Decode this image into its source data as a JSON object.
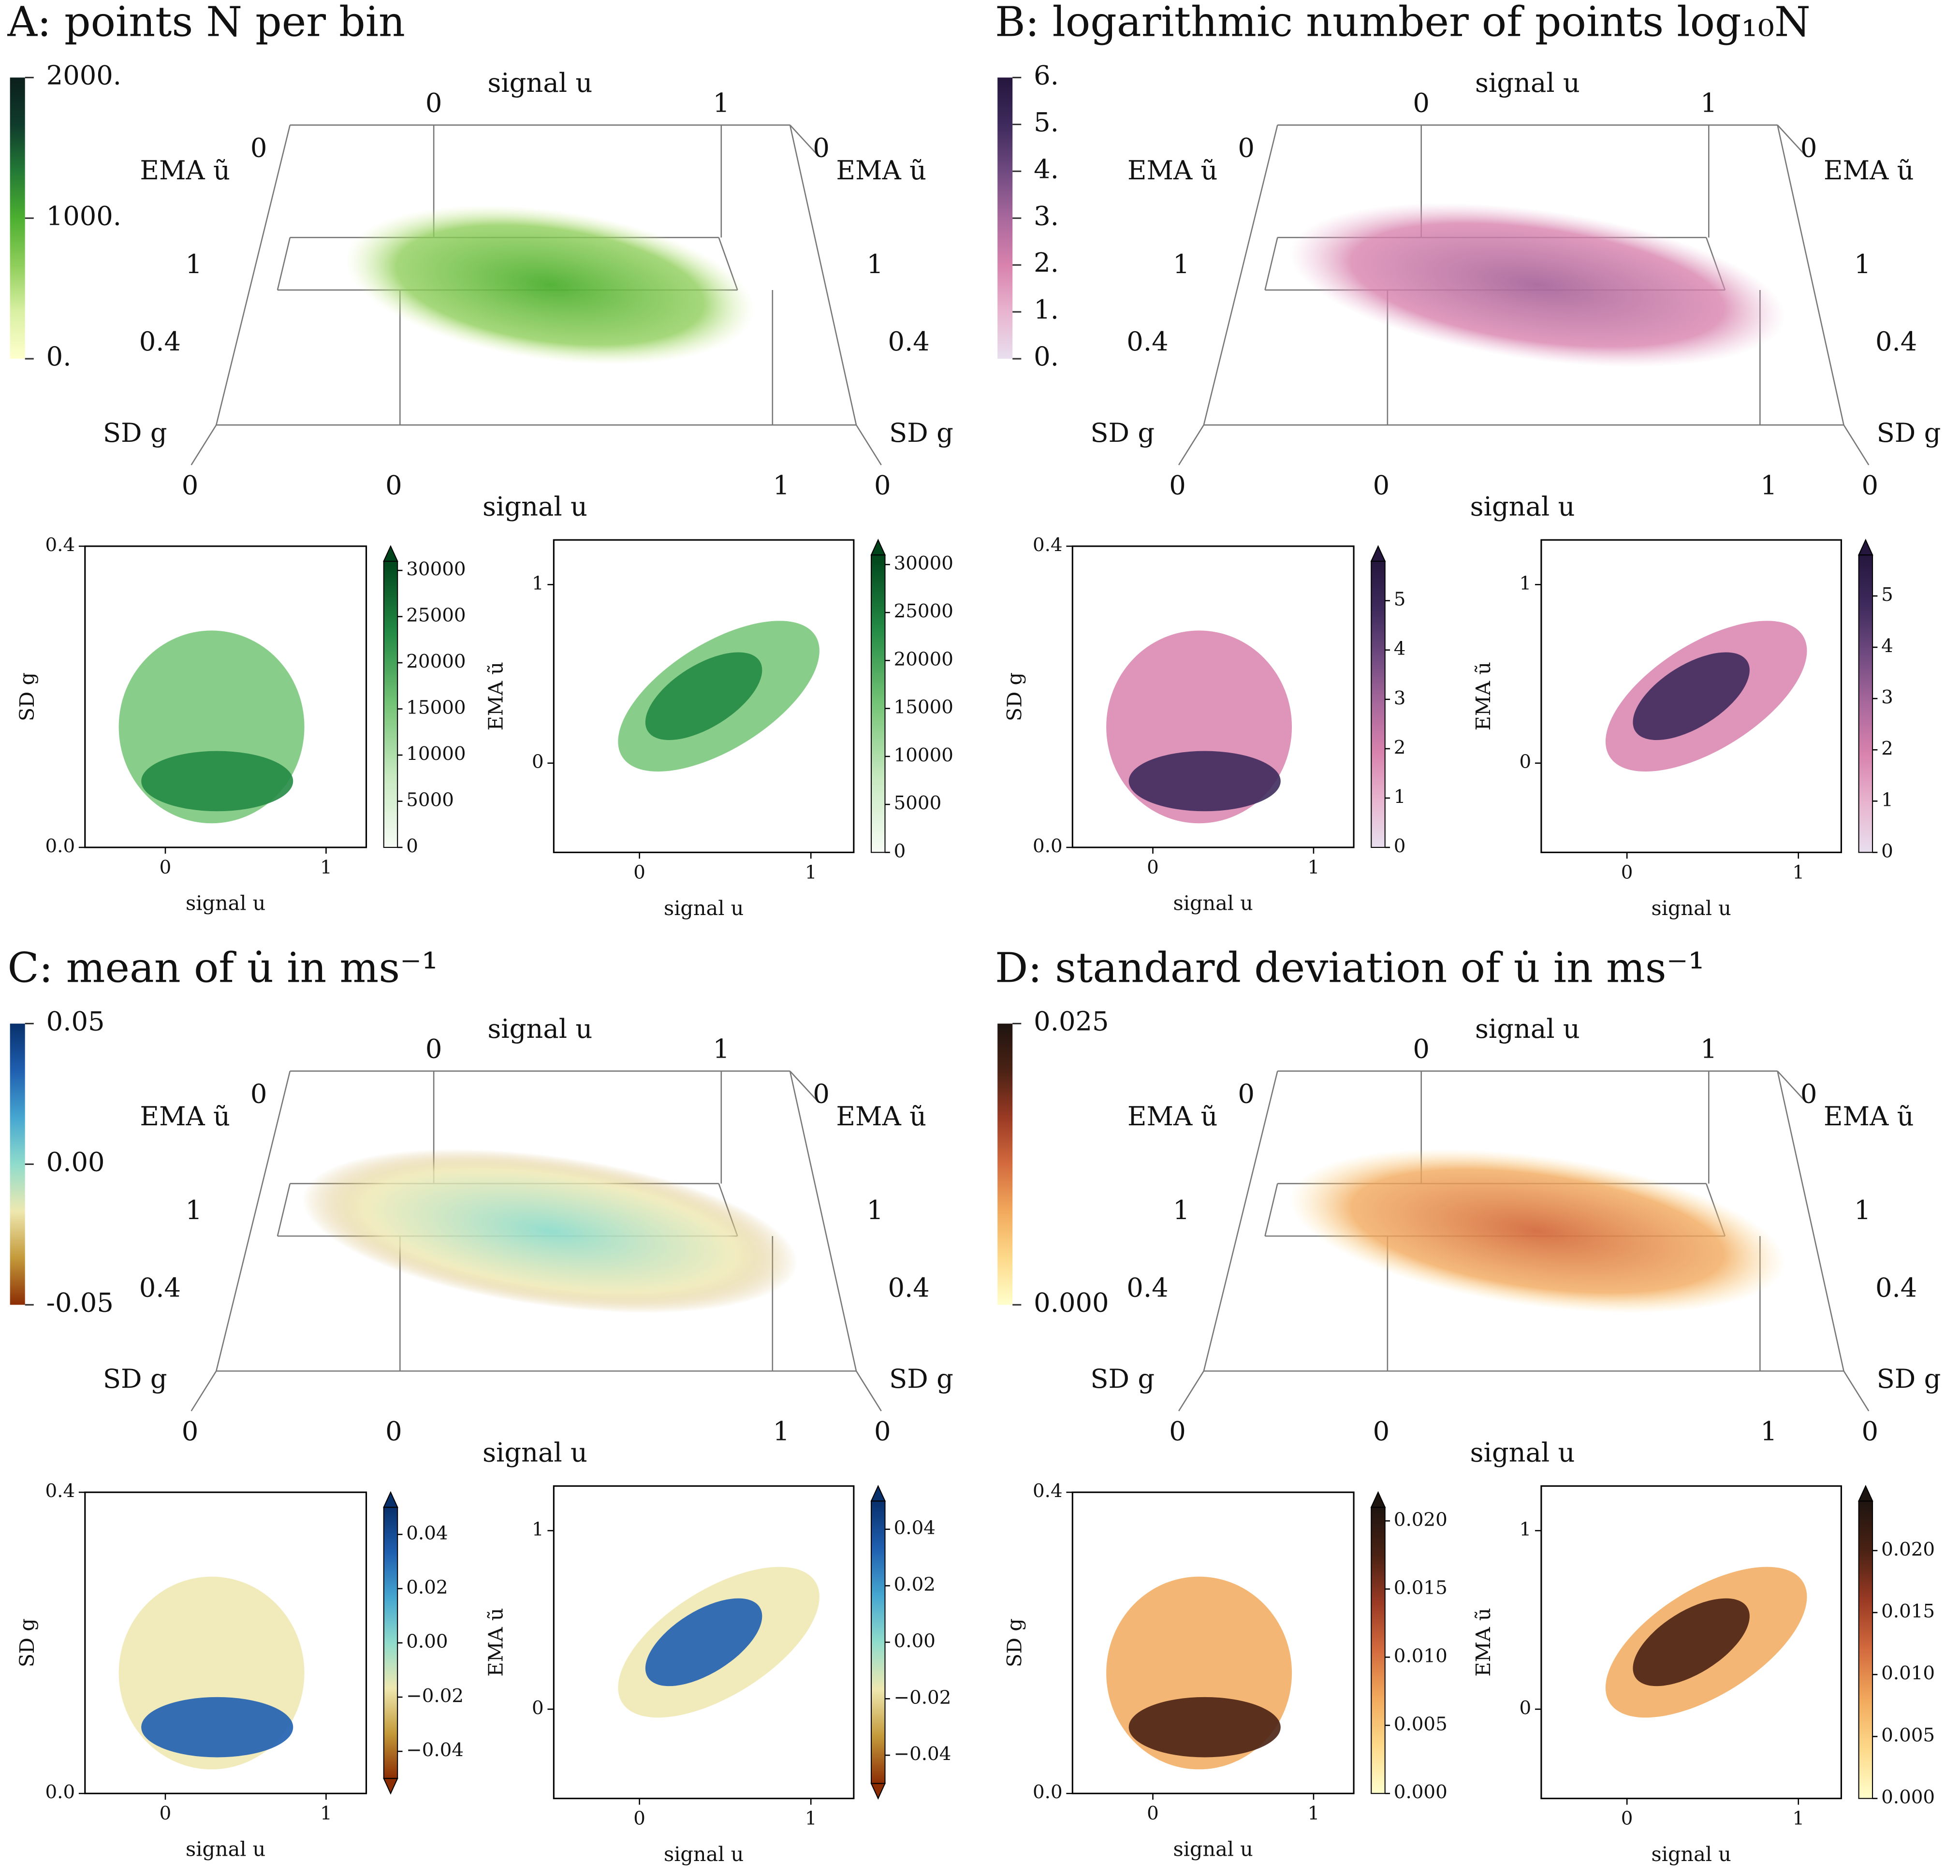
{
  "chart_data": [
    {
      "type": "volume",
      "title": "A: points N per bin",
      "axes": {
        "x_label": "signal u",
        "y_label": "EMA ũ",
        "z_label": "SD g",
        "xticks": [
          0,
          1
        ],
        "yticks": [
          0,
          1
        ],
        "zticks": [
          0,
          0.4
        ]
      },
      "colorbar": {
        "lim": [
          0,
          2000
        ],
        "ticks": [
          {
            "value": 2000,
            "label": "2000."
          },
          {
            "value": 1000,
            "label": "1000."
          },
          {
            "value": 0,
            "label": "0."
          }
        ],
        "colors": [
          "#ffffcc",
          "#d9f0a3",
          "#8fce5a",
          "#4caf2f",
          "#237a36",
          "#0f3b2c",
          "#0b1f1b"
        ]
      },
      "subplots": [
        {
          "type": "heatmap",
          "xlabel": "signal u",
          "ylabel": "SD g",
          "xlim": [
            -0.5,
            1.25
          ],
          "ylim": [
            0,
            0.4
          ],
          "xticks": [
            0,
            1
          ],
          "yticks": [
            {
              "value": 0,
              "label": "0.0"
            },
            0.4
          ],
          "colorbar": {
            "lim": [
              0,
              31000
            ],
            "ticks": [
              0,
              5000,
              10000,
              15000,
              20000,
              25000,
              30000
            ],
            "extend": "max",
            "colors": [
              "#f7fcf5",
              "#c7e9c0",
              "#74c476",
              "#238b45",
              "#00441b"
            ]
          }
        },
        {
          "type": "heatmap",
          "xlabel": "signal u",
          "ylabel": "EMA ũ",
          "xlim": [
            -0.5,
            1.25
          ],
          "ylim": [
            -0.5,
            1.25
          ],
          "xticks": [
            0,
            1
          ],
          "yticks": [
            0,
            1
          ],
          "colorbar": {
            "lim": [
              0,
              31000
            ],
            "ticks": [
              0,
              5000,
              10000,
              15000,
              20000,
              25000,
              30000
            ],
            "extend": "max",
            "colors": [
              "#f7fcf5",
              "#c7e9c0",
              "#74c476",
              "#238b45",
              "#00441b"
            ]
          }
        }
      ]
    },
    {
      "type": "volume",
      "title": "B: logarithmic number of points log₁₀N",
      "axes": {
        "x_label": "signal u",
        "y_label": "EMA ũ",
        "z_label": "SD g",
        "xticks": [
          0,
          1
        ],
        "yticks": [
          0,
          1
        ],
        "zticks": [
          0,
          0.4
        ]
      },
      "colorbar": {
        "lim": [
          0,
          6
        ],
        "ticks": [
          {
            "value": 6,
            "label": "6."
          },
          {
            "value": 5,
            "label": "5."
          },
          {
            "value": 4,
            "label": "4."
          },
          {
            "value": 3,
            "label": "3."
          },
          {
            "value": 2,
            "label": "2."
          },
          {
            "value": 1,
            "label": "1."
          },
          {
            "value": 0,
            "label": "0."
          }
        ],
        "colors": [
          "#e8dfee",
          "#e8b4cf",
          "#d882ad",
          "#a8689c",
          "#6f4a80",
          "#3e2a5c",
          "#24163d"
        ]
      },
      "subplots": [
        {
          "type": "heatmap",
          "xlabel": "signal u",
          "ylabel": "SD g",
          "xlim": [
            -0.5,
            1.25
          ],
          "ylim": [
            0,
            0.4
          ],
          "xticks": [
            0,
            1
          ],
          "yticks": [
            {
              "value": 0,
              "label": "0.0"
            },
            0.4
          ],
          "colorbar": {
            "lim": [
              0,
              5.8
            ],
            "ticks": [
              0,
              1,
              2,
              3,
              4,
              5
            ],
            "extend": "max",
            "colors": [
              "#e8dfee",
              "#e8b4cf",
              "#d882ad",
              "#a8689c",
              "#6f4a80",
              "#3e2a5c",
              "#24163d"
            ]
          }
        },
        {
          "type": "heatmap",
          "xlabel": "signal u",
          "ylabel": "EMA ũ",
          "xlim": [
            -0.5,
            1.25
          ],
          "ylim": [
            -0.5,
            1.25
          ],
          "xticks": [
            0,
            1
          ],
          "yticks": [
            0,
            1
          ],
          "colorbar": {
            "lim": [
              0,
              5.8
            ],
            "ticks": [
              0,
              1,
              2,
              3,
              4,
              5
            ],
            "extend": "max",
            "colors": [
              "#e8dfee",
              "#e8b4cf",
              "#d882ad",
              "#a8689c",
              "#6f4a80",
              "#3e2a5c",
              "#24163d"
            ]
          }
        }
      ]
    },
    {
      "type": "volume",
      "title": "C: mean of u̇ in ms⁻¹",
      "axes": {
        "x_label": "signal u",
        "y_label": "EMA ũ",
        "z_label": "SD g",
        "xticks": [
          0,
          1
        ],
        "yticks": [
          0,
          1
        ],
        "zticks": [
          0,
          0.4
        ]
      },
      "colorbar": {
        "lim": [
          -0.05,
          0.05
        ],
        "ticks": [
          0.05,
          {
            "value": 0,
            "label": "0.00"
          },
          -0.05
        ],
        "colors": [
          "#8c2d04",
          "#c49a3a",
          "#eee8b0",
          "#8fdccc",
          "#45a6d0",
          "#1f5fb0",
          "#08306b"
        ]
      },
      "subplots": [
        {
          "type": "heatmap",
          "xlabel": "signal u",
          "ylabel": "SD g",
          "xlim": [
            -0.5,
            1.25
          ],
          "ylim": [
            0,
            0.4
          ],
          "xticks": [
            0,
            1
          ],
          "yticks": [
            {
              "value": 0,
              "label": "0.0"
            },
            0.4
          ],
          "colorbar": {
            "lim": [
              -0.05,
              0.05
            ],
            "ticks": [
              {
                "value": -0.04,
                "label": "−0.04"
              },
              {
                "value": -0.02,
                "label": "−0.02"
              },
              {
                "value": 0,
                "label": "0.00"
              },
              {
                "value": 0.02,
                "label": "0.02"
              },
              {
                "value": 0.04,
                "label": "0.04"
              }
            ],
            "extend": "both",
            "colors": [
              "#8c2d04",
              "#c49a3a",
              "#eee8b0",
              "#8fdccc",
              "#45a6d0",
              "#1f5fb0",
              "#08306b"
            ]
          }
        },
        {
          "type": "heatmap",
          "xlabel": "signal u",
          "ylabel": "EMA ũ",
          "xlim": [
            -0.5,
            1.25
          ],
          "ylim": [
            -0.5,
            1.25
          ],
          "xticks": [
            0,
            1
          ],
          "yticks": [
            0,
            1
          ],
          "colorbar": {
            "lim": [
              -0.05,
              0.05
            ],
            "ticks": [
              {
                "value": -0.04,
                "label": "−0.04"
              },
              {
                "value": -0.02,
                "label": "−0.02"
              },
              {
                "value": 0,
                "label": "0.00"
              },
              {
                "value": 0.02,
                "label": "0.02"
              },
              {
                "value": 0.04,
                "label": "0.04"
              }
            ],
            "extend": "both",
            "colors": [
              "#8c2d04",
              "#c49a3a",
              "#eee8b0",
              "#8fdccc",
              "#45a6d0",
              "#1f5fb0",
              "#08306b"
            ]
          }
        }
      ]
    },
    {
      "type": "volume",
      "title": "D: standard deviation of u̇ in ms⁻¹",
      "axes": {
        "x_label": "signal u",
        "y_label": "EMA ũ",
        "z_label": "SD g",
        "xticks": [
          0,
          1
        ],
        "yticks": [
          0,
          1
        ],
        "zticks": [
          0,
          0.4
        ]
      },
      "colorbar": {
        "lim": [
          0,
          0.025
        ],
        "ticks": [
          0.025,
          {
            "value": 0,
            "label": "0.000"
          }
        ],
        "colors": [
          "#ffffcc",
          "#fdd98a",
          "#f2a95c",
          "#d36b3e",
          "#9a3a24",
          "#4a2214",
          "#1e1410"
        ]
      },
      "subplots": [
        {
          "type": "heatmap",
          "xlabel": "signal u",
          "ylabel": "SD g",
          "xlim": [
            -0.5,
            1.25
          ],
          "ylim": [
            0,
            0.4
          ],
          "xticks": [
            0,
            1
          ],
          "yticks": [
            {
              "value": 0,
              "label": "0.0"
            },
            0.4
          ],
          "colorbar": {
            "lim": [
              0,
              0.021
            ],
            "ticks": [
              {
                "value": 0,
                "label": "0.000"
              },
              {
                "value": 0.005,
                "label": "0.005"
              },
              {
                "value": 0.01,
                "label": "0.010"
              },
              0.015,
              {
                "value": 0.02,
                "label": "0.020"
              }
            ],
            "extend": "max",
            "colors": [
              "#ffffcc",
              "#fdd98a",
              "#f2a95c",
              "#d36b3e",
              "#9a3a24",
              "#4a2214",
              "#1e1410"
            ]
          }
        },
        {
          "type": "heatmap",
          "xlabel": "signal u",
          "ylabel": "EMA ũ",
          "xlim": [
            -0.5,
            1.25
          ],
          "ylim": [
            -0.5,
            1.25
          ],
          "xticks": [
            0,
            1
          ],
          "yticks": [
            0,
            1
          ],
          "colorbar": {
            "lim": [
              0,
              0.024
            ],
            "ticks": [
              {
                "value": 0,
                "label": "0.000"
              },
              {
                "value": 0.005,
                "label": "0.005"
              },
              {
                "value": 0.01,
                "label": "0.010"
              },
              0.015,
              {
                "value": 0.02,
                "label": "0.020"
              }
            ],
            "extend": "max",
            "colors": [
              "#ffffcc",
              "#fdd98a",
              "#f2a95c",
              "#d36b3e",
              "#9a3a24",
              "#4a2214",
              "#1e1410"
            ]
          }
        }
      ]
    }
  ]
}
